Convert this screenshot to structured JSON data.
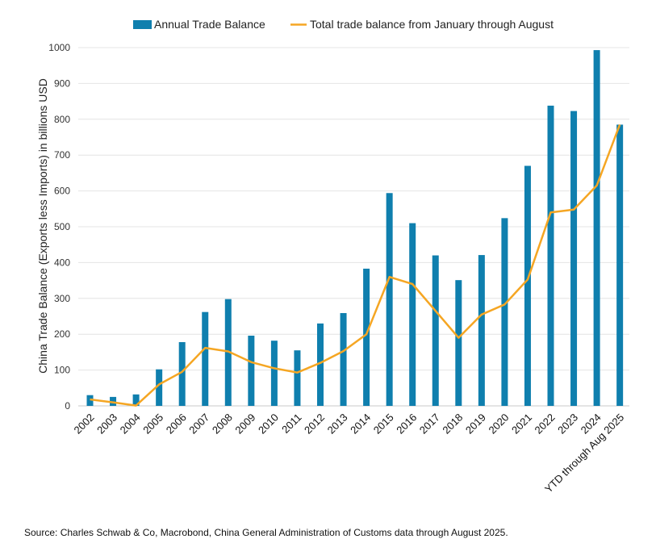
{
  "chart_data": {
    "type": "bar",
    "categories": [
      "2002",
      "2003",
      "2004",
      "2005",
      "2006",
      "2007",
      "2008",
      "2009",
      "2010",
      "2011",
      "2012",
      "2013",
      "2014",
      "2015",
      "2016",
      "2017",
      "2018",
      "2019",
      "2020",
      "2021",
      "2022",
      "2023",
      "2024",
      "YTD through Aug 2025"
    ],
    "series": [
      {
        "name": "Annual Trade Balance",
        "type": "bar",
        "color": "#0f7fae",
        "values": [
          30,
          25,
          32,
          102,
          178,
          262,
          298,
          196,
          182,
          155,
          230,
          259,
          383,
          594,
          510,
          420,
          351,
          421,
          524,
          670,
          838,
          823,
          993,
          785
        ]
      },
      {
        "name": "Total trade balance from January through August",
        "type": "line",
        "color": "#f5a623",
        "values": [
          18,
          10,
          1,
          60,
          95,
          162,
          152,
          122,
          105,
          93,
          120,
          153,
          200,
          360,
          340,
          265,
          190,
          255,
          283,
          353,
          540,
          548,
          615,
          785
        ]
      }
    ],
    "ylabel": "China Trade Balance (Exports less Imports) in billions USD",
    "xlabel": "",
    "ylim": [
      0,
      1000
    ],
    "yticks": [
      0,
      100,
      200,
      300,
      400,
      500,
      600,
      700,
      800,
      900,
      1000
    ],
    "grid": true,
    "legend_position": "top"
  },
  "source_note": "Source: Charles Schwab & Co, Macrobond, China General Administration of Customs data through August 2025."
}
